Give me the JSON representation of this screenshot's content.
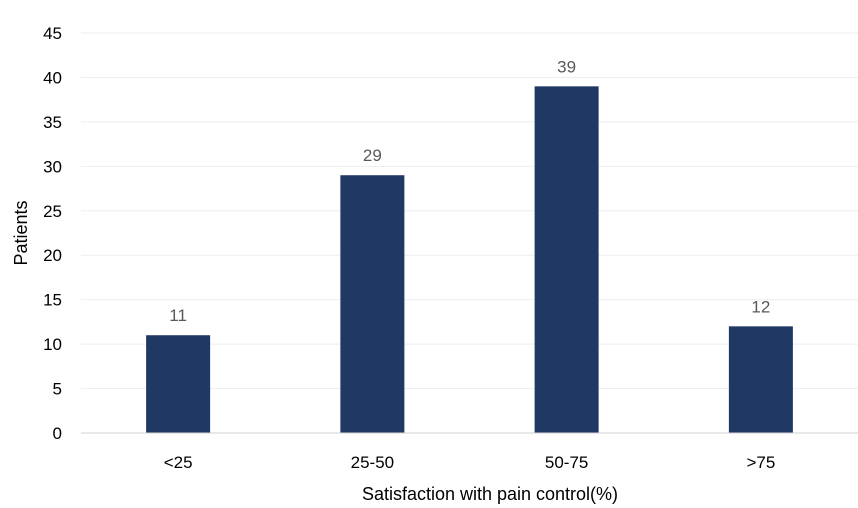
{
  "chart_data": {
    "type": "bar",
    "title": "",
    "xlabel": "Satisfaction with pain control(%)",
    "ylabel": "Patients",
    "categories": [
      "<25",
      "25-50",
      "50-75",
      ">75"
    ],
    "values": [
      11,
      29,
      39,
      12
    ],
    "ylim": [
      0,
      45
    ],
    "yticks": [
      0,
      5,
      10,
      15,
      20,
      25,
      30,
      35,
      40,
      45
    ],
    "grid": true,
    "legend": "none",
    "bar_color": "#203864",
    "grid_color": "#eeeeee",
    "axis_color": "#d0d0d0"
  }
}
